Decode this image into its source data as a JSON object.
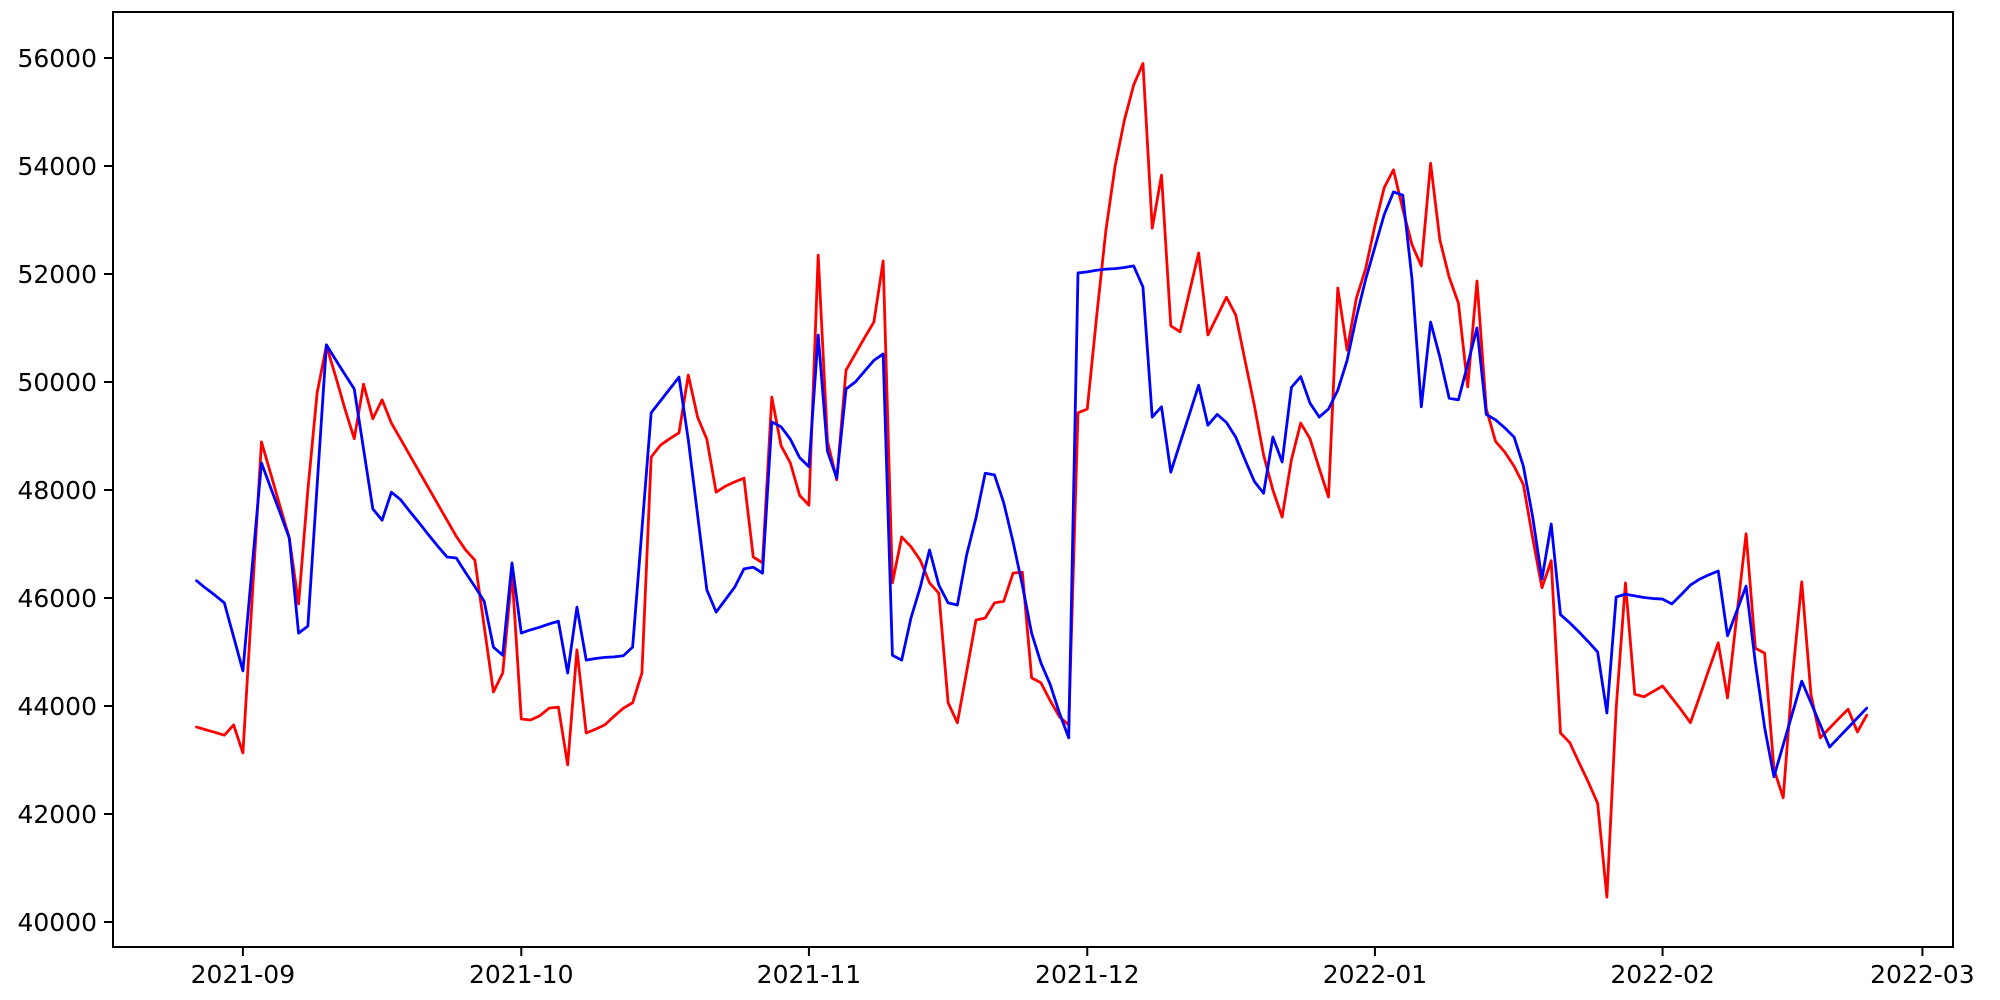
{
  "figure": {
    "background_color": "#ffffff",
    "spine_color": "#000000",
    "tick_color": "#000000",
    "tick_label_color": "#000000"
  },
  "chart_data": {
    "type": "line",
    "title": "",
    "xlabel": "",
    "ylabel": "",
    "grid": false,
    "legend_position": "none",
    "x_tick_labels": [
      "2021-09",
      "2021-10",
      "2021-11",
      "2021-12",
      "2022-01",
      "2022-02",
      "2022-03"
    ],
    "y_tick_labels": [
      "40000",
      "42000",
      "44000",
      "46000",
      "48000",
      "50000",
      "52000",
      "54000",
      "56000"
    ],
    "y_tick_values": [
      40000,
      42000,
      44000,
      46000,
      48000,
      50000,
      52000,
      54000,
      56000
    ],
    "x_tick_day_index": [
      5,
      35,
      66,
      96,
      127,
      158,
      186
    ],
    "xlim_day_index": [
      -9,
      189.3
    ],
    "ylim": [
      39537,
      56852
    ],
    "start_date": "2021-08-27",
    "end_date": "2022-02-23",
    "frequency": "daily",
    "series": [
      {
        "name": "red-series",
        "color": "#ff0000",
        "values": [
          43610,
          43560,
          43510,
          43460,
          43650,
          43130,
          46000,
          48890,
          48300,
          47700,
          47110,
          45890,
          48000,
          49800,
          50670,
          50100,
          49500,
          48950,
          49960,
          49320,
          49670,
          49240,
          48940,
          48640,
          48340,
          48040,
          47740,
          47440,
          47140,
          46890,
          46700,
          45480,
          44260,
          44610,
          46460,
          43760,
          43740,
          43820,
          43960,
          43980,
          42910,
          45040,
          43500,
          43570,
          43650,
          43810,
          43960,
          44060,
          44610,
          48610,
          48830,
          48950,
          49060,
          50130,
          49350,
          48940,
          47960,
          48070,
          48150,
          48220,
          46760,
          46650,
          49720,
          48820,
          48500,
          47900,
          47720,
          52350,
          48900,
          48190,
          50220,
          50520,
          50820,
          51110,
          52240,
          46280,
          47130,
          46950,
          46700,
          46280,
          46090,
          44060,
          43690,
          44640,
          45590,
          45630,
          45910,
          45940,
          46460,
          46480,
          44520,
          44430,
          44100,
          43800,
          43650,
          49430,
          49500,
          51200,
          52800,
          54000,
          54850,
          55500,
          55900,
          52850,
          53830,
          51040,
          50930,
          51660,
          52390,
          50870,
          51220,
          51570,
          51240,
          50400,
          49570,
          48650,
          48000,
          47500,
          48560,
          49240,
          48950,
          48400,
          47870,
          51740,
          50590,
          51550,
          52100,
          52900,
          53600,
          53930,
          53200,
          52540,
          52150,
          54050,
          52630,
          51940,
          51460,
          49910,
          51870,
          49500,
          48900,
          48700,
          48440,
          48100,
          47110,
          46190,
          46690,
          43500,
          43320,
          42950,
          42590,
          42200,
          40460,
          43960,
          46280,
          44220,
          44170,
          44270,
          44370,
          44150,
          43930,
          43690,
          44180,
          44680,
          45170,
          44150,
          45670,
          47190,
          45070,
          44980,
          42830,
          42300,
          44540,
          46300,
          44200,
          43410,
          43590,
          43770,
          43940,
          43520,
          43830
        ]
      },
      {
        "name": "blue-series",
        "color": "#0000ff",
        "values": [
          46320,
          46180,
          46050,
          45910,
          45280,
          44650,
          46580,
          48500,
          48040,
          47580,
          47110,
          45350,
          45480,
          48090,
          50690,
          50410,
          50140,
          49870,
          48760,
          47650,
          47440,
          47960,
          47820,
          47600,
          47390,
          47170,
          46960,
          46760,
          46740,
          46470,
          46210,
          45940,
          45090,
          44940,
          46650,
          45350,
          45410,
          45460,
          45520,
          45570,
          44610,
          45830,
          44850,
          44880,
          44900,
          44910,
          44930,
          45090,
          47260,
          49430,
          49650,
          49870,
          50090,
          48930,
          47540,
          46150,
          45740,
          45970,
          46200,
          46540,
          46570,
          46460,
          49260,
          49170,
          48940,
          48600,
          48430,
          50870,
          48720,
          48220,
          49870,
          50000,
          50200,
          50400,
          50520,
          44940,
          44850,
          45630,
          46200,
          46890,
          46240,
          45910,
          45870,
          46800,
          47480,
          48310,
          48280,
          47760,
          47040,
          46240,
          45350,
          44800,
          44400,
          43870,
          43410,
          52020,
          52040,
          52070,
          52090,
          52100,
          52120,
          52150,
          51760,
          49350,
          49540,
          48330,
          48870,
          49400,
          49940,
          49200,
          49400,
          49250,
          48980,
          48560,
          48160,
          47940,
          48980,
          48520,
          49900,
          50100,
          49610,
          49350,
          49500,
          49850,
          50400,
          51200,
          51900,
          52500,
          53100,
          53520,
          53460,
          51900,
          49540,
          51110,
          50460,
          49700,
          49670,
          50330,
          51000,
          49400,
          49300,
          49150,
          48980,
          48440,
          47500,
          46350,
          47370,
          45690,
          45540,
          45370,
          45190,
          45000,
          43870,
          46020,
          46070,
          46040,
          46010,
          45990,
          45980,
          45890,
          46060,
          46240,
          46350,
          46430,
          46500,
          45300,
          45760,
          46220,
          44800,
          43600,
          42690,
          43280,
          43870,
          44460,
          44060,
          43650,
          43240,
          43420,
          43600,
          43780,
          43960
        ]
      }
    ]
  },
  "layout_note": ""
}
